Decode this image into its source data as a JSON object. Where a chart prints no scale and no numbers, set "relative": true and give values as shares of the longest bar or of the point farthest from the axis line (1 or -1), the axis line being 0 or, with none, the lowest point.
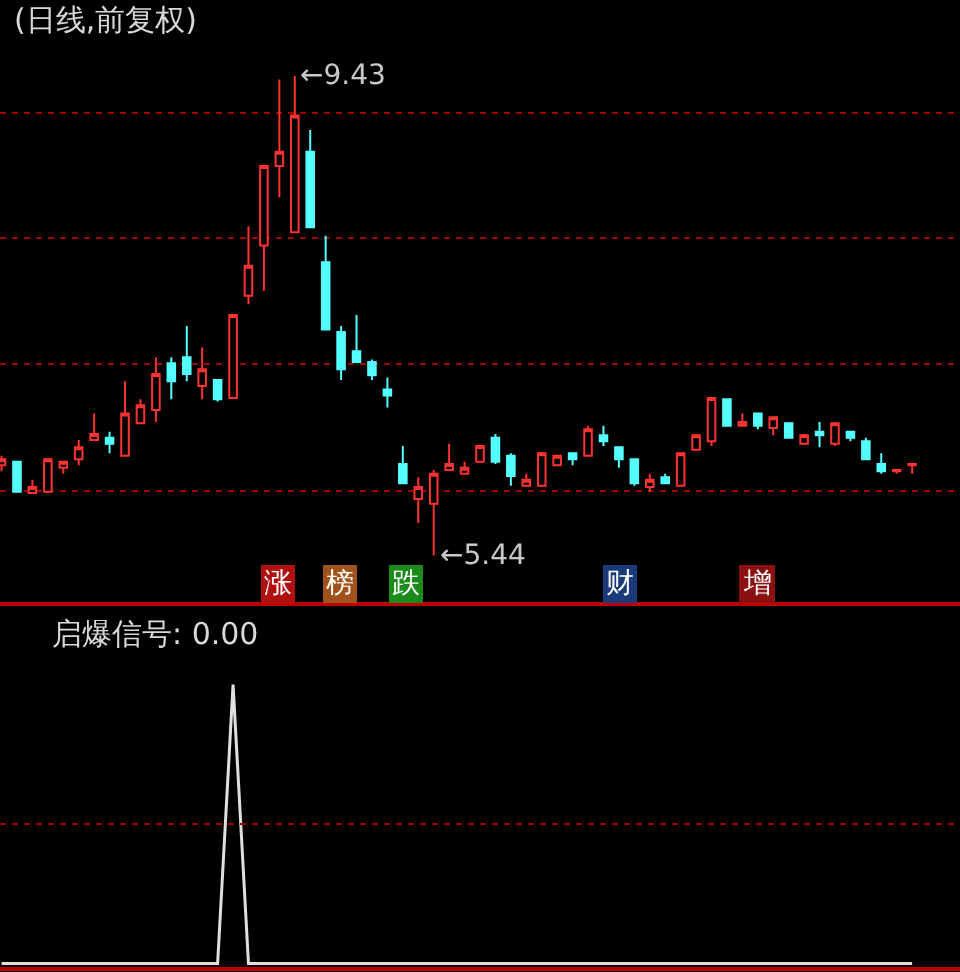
{
  "chart_data": [
    {
      "type": "candlestick",
      "title": "(日线,前复权)",
      "categories": [
        null,
        null,
        null,
        null,
        null,
        null,
        null,
        null,
        null,
        null,
        null,
        null,
        null,
        null,
        null,
        null,
        null,
        null,
        null,
        null,
        null,
        null,
        null,
        null,
        null,
        null,
        null,
        null,
        null,
        null,
        null,
        null,
        null,
        null,
        null,
        null,
        null,
        null,
        null,
        null,
        null,
        null,
        null,
        null,
        null,
        null,
        null,
        null,
        null,
        null,
        null,
        null,
        null,
        null,
        null,
        null,
        null,
        null,
        null,
        null
      ],
      "ohlc": [
        [
          6.19,
          6.27,
          6.14,
          6.24
        ],
        [
          6.22,
          6.22,
          5.97,
          5.97
        ],
        [
          5.96,
          6.07,
          5.96,
          6.01
        ],
        [
          5.97,
          6.24,
          5.96,
          6.24
        ],
        [
          6.17,
          6.22,
          6.12,
          6.22
        ],
        [
          6.24,
          6.4,
          6.19,
          6.34
        ],
        [
          6.4,
          6.62,
          6.4,
          6.45
        ],
        [
          6.42,
          6.47,
          6.29,
          6.37
        ],
        [
          6.27,
          6.89,
          6.27,
          6.62
        ],
        [
          6.54,
          6.74,
          6.54,
          6.69
        ],
        [
          6.65,
          7.09,
          6.55,
          6.95
        ],
        [
          7.04,
          7.09,
          6.74,
          6.89
        ],
        [
          7.09,
          7.35,
          6.89,
          6.95
        ],
        [
          6.85,
          7.17,
          6.74,
          6.99
        ],
        [
          6.9,
          6.9,
          6.72,
          6.74
        ],
        [
          6.75,
          7.44,
          6.74,
          7.44
        ],
        [
          7.6,
          8.18,
          7.53,
          7.85
        ],
        [
          8.02,
          8.68,
          7.64,
          8.68
        ],
        [
          8.68,
          9.4,
          8.42,
          8.8
        ],
        [
          8.13,
          9.43,
          8.13,
          9.1
        ],
        [
          8.8,
          8.98,
          8.17,
          8.17
        ],
        [
          7.88,
          8.1,
          7.32,
          7.32
        ],
        [
          7.3,
          7.35,
          6.9,
          6.99
        ],
        [
          7.14,
          7.44,
          7.04,
          7.05
        ],
        [
          7.05,
          7.07,
          6.9,
          6.94
        ],
        [
          6.82,
          6.92,
          6.67,
          6.77
        ],
        [
          6.2,
          6.35,
          6.04,
          6.04
        ],
        [
          5.91,
          6.09,
          5.71,
          6.01
        ],
        [
          5.87,
          6.15,
          5.44,
          6.12
        ],
        [
          6.15,
          6.37,
          6.15,
          6.2
        ],
        [
          6.12,
          6.22,
          6.12,
          6.17
        ],
        [
          6.22,
          6.35,
          6.22,
          6.35
        ],
        [
          6.42,
          6.45,
          6.2,
          6.22
        ],
        [
          6.27,
          6.29,
          6.02,
          6.1
        ],
        [
          6.02,
          6.12,
          6.02,
          6.07
        ],
        [
          6.02,
          6.3,
          6.02,
          6.29
        ],
        [
          6.19,
          6.27,
          6.19,
          6.27
        ],
        [
          6.29,
          6.29,
          6.19,
          6.24
        ],
        [
          6.27,
          6.52,
          6.27,
          6.49
        ],
        [
          6.44,
          6.52,
          6.35,
          6.39
        ],
        [
          6.34,
          6.34,
          6.17,
          6.24
        ],
        [
          6.24,
          6.24,
          6.02,
          6.04
        ],
        [
          6.01,
          6.12,
          5.97,
          6.07
        ],
        [
          6.09,
          6.12,
          6.04,
          6.04
        ],
        [
          6.02,
          6.29,
          6.02,
          6.29
        ],
        [
          6.32,
          6.44,
          6.32,
          6.44
        ],
        [
          6.39,
          6.75,
          6.35,
          6.75
        ],
        [
          6.74,
          6.74,
          6.52,
          6.52
        ],
        [
          6.52,
          6.62,
          6.52,
          6.55
        ],
        [
          6.62,
          6.62,
          6.49,
          6.52
        ],
        [
          6.5,
          6.59,
          6.44,
          6.59
        ],
        [
          6.54,
          6.54,
          6.42,
          6.42
        ],
        [
          6.37,
          6.45,
          6.37,
          6.44
        ],
        [
          6.47,
          6.55,
          6.34,
          6.44
        ],
        [
          6.37,
          6.54,
          6.35,
          6.54
        ],
        [
          6.47,
          6.47,
          6.39,
          6.42
        ],
        [
          6.39,
          6.42,
          6.24,
          6.24
        ],
        [
          6.2,
          6.29,
          6.12,
          6.14
        ],
        [
          6.14,
          6.15,
          6.12,
          6.15
        ],
        [
          6.19,
          6.2,
          6.12,
          6.2
        ]
      ],
      "yticks": [
        {
          "value": 5.98,
          "label": null
        },
        {
          "value": 7.03,
          "label": null
        },
        {
          "value": 8.08,
          "label": null
        },
        {
          "value": 9.12,
          "label": null
        }
      ],
      "grid": "y",
      "annotations": [
        "←9.43",
        "←5.44",
        "涨",
        "榜",
        "跌",
        "财",
        "增"
      ]
    },
    {
      "type": "line",
      "title": "启爆信号: 0.00",
      "relative": true,
      "categories": [
        null,
        null,
        null,
        null,
        null,
        null,
        null,
        null,
        null,
        null,
        null,
        null,
        null,
        null,
        null,
        null,
        null,
        null,
        null,
        null,
        null,
        null,
        null,
        null,
        null,
        null,
        null,
        null,
        null,
        null,
        null,
        null,
        null,
        null,
        null,
        null,
        null,
        null,
        null,
        null,
        null,
        null,
        null,
        null,
        null,
        null,
        null,
        null,
        null,
        null,
        null,
        null,
        null,
        null,
        null,
        null,
        null,
        null,
        null,
        null
      ],
      "series": [
        {
          "color": "#e0e0e0",
          "values": [
            0,
            0,
            0,
            0,
            0,
            0,
            0,
            0,
            0,
            0,
            0,
            0,
            0,
            0,
            0,
            1,
            0,
            0,
            0,
            0,
            0,
            0,
            0,
            0,
            0,
            0,
            0,
            0,
            0,
            0,
            0,
            0,
            0,
            0,
            0,
            0,
            0,
            0,
            0,
            0,
            0,
            0,
            0,
            0,
            0,
            0,
            0,
            0,
            0,
            0,
            0,
            0,
            0,
            0,
            0,
            0,
            0,
            0,
            0,
            0
          ]
        }
      ],
      "ref_lines": [
        {
          "axis": "y",
          "value": 0.5,
          "color": "#a00000",
          "line_style": "dotted"
        }
      ]
    }
  ]
}
